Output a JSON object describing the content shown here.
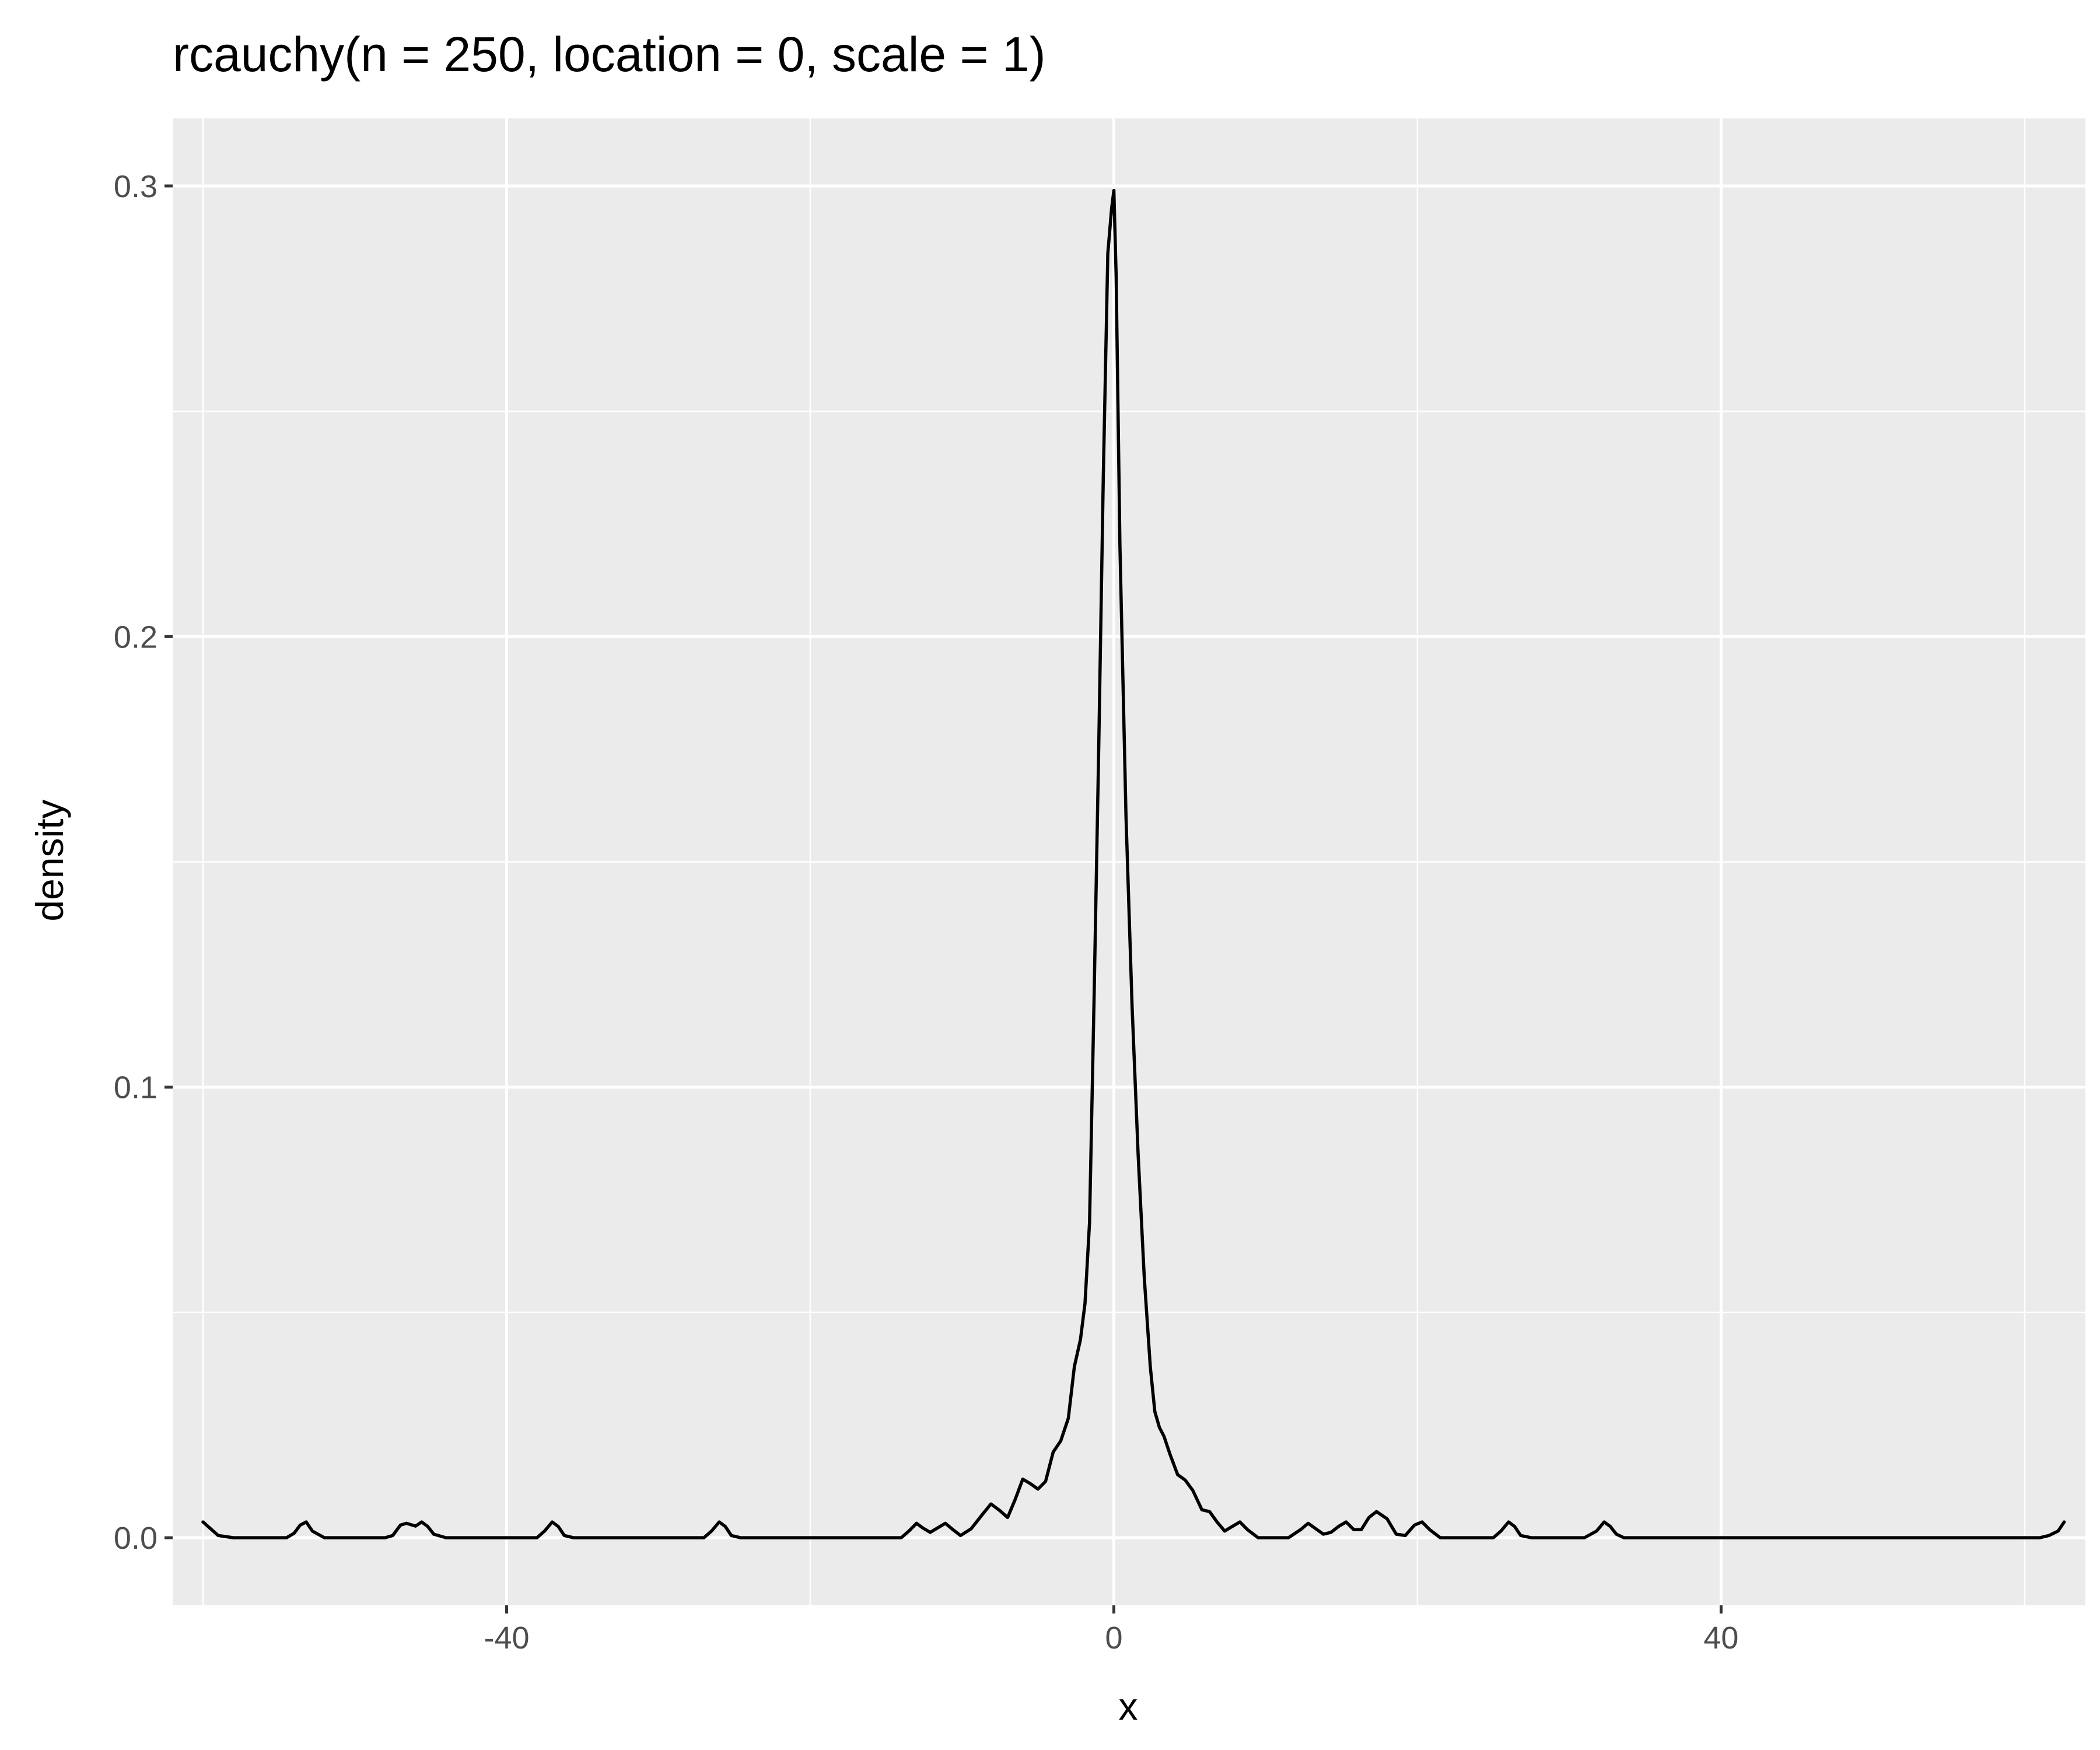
{
  "chart_data": {
    "type": "line",
    "title": "rcauchy(n = 250, location = 0, scale = 1)",
    "xlabel": "x",
    "ylabel": "density",
    "xlim": [
      -62,
      64
    ],
    "ylim": [
      -0.015,
      0.315
    ],
    "x_ticks": [
      -40,
      0,
      40
    ],
    "x_tick_labels": [
      "-40",
      "0",
      "40"
    ],
    "x_minor_breaks": [
      -60,
      -20,
      20,
      60
    ],
    "y_ticks": [
      0.0,
      0.1,
      0.2,
      0.3
    ],
    "y_tick_labels": [
      "0.0",
      "0.1",
      "0.2",
      "0.3"
    ],
    "y_minor_breaks": [
      0.05,
      0.15,
      0.25
    ],
    "grid": true,
    "panel_background": "#ebebeb",
    "grid_color": "#ffffff",
    "line_color": "#000000",
    "series": [
      {
        "x": [
          -60.0,
          -59.5,
          -59.0,
          -58.0,
          -56.0,
          -54.5,
          -54.0,
          -53.6,
          -53.2,
          -52.8,
          -52.0,
          -50.0,
          -48.0,
          -47.5,
          -47.0,
          -46.6,
          -46.0,
          -45.6,
          -45.2,
          -44.8,
          -44.0,
          -42.0,
          -40.0,
          -38.0,
          -37.5,
          -37.0,
          -36.6,
          -36.2,
          -35.6,
          -34.0,
          -30.0,
          -27.0,
          -26.5,
          -26.0,
          -25.6,
          -25.2,
          -24.6,
          -22.0,
          -18.0,
          -14.0,
          -13.5,
          -13.0,
          -12.6,
          -12.1,
          -11.6,
          -11.1,
          -10.6,
          -10.1,
          -9.4,
          -8.7,
          -8.1,
          -7.5,
          -7.0,
          -6.5,
          -6.0,
          -5.5,
          -5.0,
          -4.5,
          -4.0,
          -3.5,
          -3.0,
          -2.6,
          -2.2,
          -1.9,
          -1.6,
          -1.3,
          -1.0,
          -0.7,
          -0.4,
          -0.15,
          0.0,
          0.15,
          0.4,
          0.8,
          1.2,
          1.6,
          2.0,
          2.4,
          2.7,
          3.0,
          3.3,
          3.7,
          4.2,
          4.7,
          5.2,
          5.8,
          6.3,
          6.8,
          7.3,
          7.8,
          8.3,
          8.8,
          9.5,
          10.5,
          11.5,
          12.3,
          12.8,
          13.3,
          13.8,
          14.3,
          14.8,
          15.3,
          15.8,
          16.3,
          16.8,
          17.3,
          18.0,
          18.6,
          19.2,
          19.8,
          20.3,
          20.8,
          21.5,
          23.0,
          25.0,
          25.5,
          26.0,
          26.4,
          26.8,
          27.5,
          29.0,
          31.0,
          31.8,
          32.3,
          32.7,
          33.1,
          33.6,
          35.0,
          40.0,
          50.0,
          60.0,
          61.0,
          61.6,
          62.2,
          62.6
        ],
        "y": [
          0.0035,
          0.002,
          0.0005,
          0.0,
          0.0,
          0.0,
          0.001,
          0.0028,
          0.0035,
          0.0015,
          0.0,
          0.0,
          0.0,
          0.0005,
          0.0028,
          0.0032,
          0.0026,
          0.0035,
          0.0025,
          0.0008,
          0.0,
          0.0,
          0.0,
          0.0,
          0.0015,
          0.0035,
          0.0025,
          0.0005,
          0.0,
          0.0,
          0.0,
          0.0,
          0.0015,
          0.0035,
          0.0025,
          0.0005,
          0.0,
          0.0,
          0.0,
          0.0,
          0.0015,
          0.0032,
          0.0022,
          0.0012,
          0.0022,
          0.0032,
          0.0018,
          0.0005,
          0.002,
          0.005,
          0.0075,
          0.006,
          0.0045,
          0.0085,
          0.013,
          0.012,
          0.0108,
          0.0125,
          0.019,
          0.0215,
          0.0265,
          0.038,
          0.044,
          0.052,
          0.07,
          0.12,
          0.175,
          0.235,
          0.285,
          0.295,
          0.299,
          0.28,
          0.22,
          0.16,
          0.118,
          0.085,
          0.058,
          0.038,
          0.028,
          0.0245,
          0.0225,
          0.0185,
          0.014,
          0.0128,
          0.0105,
          0.0062,
          0.0058,
          0.0035,
          0.0015,
          0.0025,
          0.0035,
          0.0018,
          0.0,
          0.0,
          0.0,
          0.0018,
          0.0032,
          0.002,
          0.0008,
          0.0012,
          0.0025,
          0.0035,
          0.0018,
          0.0018,
          0.0045,
          0.0058,
          0.0042,
          0.0008,
          0.0005,
          0.0028,
          0.0035,
          0.0018,
          0.0,
          0.0,
          0.0,
          0.0015,
          0.0035,
          0.0025,
          0.0005,
          0.0,
          0.0,
          0.0,
          0.0015,
          0.0035,
          0.0025,
          0.0008,
          0.0,
          0.0,
          0.0,
          0.0,
          0.0,
          0.0,
          0.0005,
          0.0015,
          0.0035
        ]
      }
    ]
  }
}
